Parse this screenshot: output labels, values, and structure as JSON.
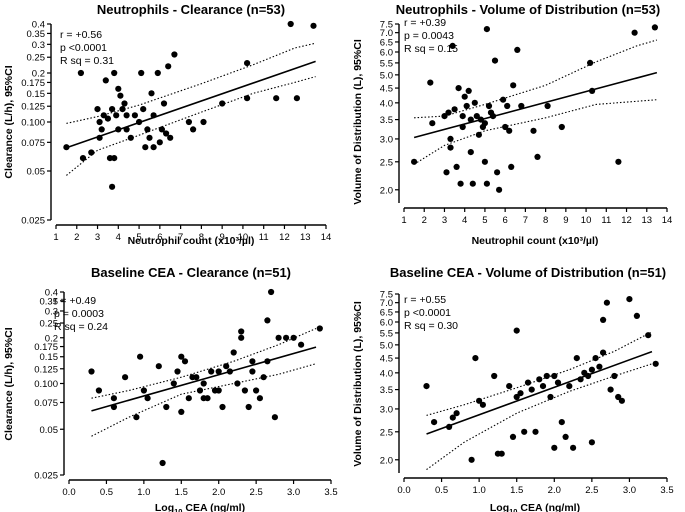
{
  "chart_data": [
    {
      "type": "scatter",
      "title": "Neutrophils - Clearance (n=53)",
      "xlabel": "Neutrophil count (x10³/µl)",
      "ylabel": "Clearance (L/h), 95%CI",
      "xlim": [
        1,
        14
      ],
      "ylim": [
        0.025,
        0.4
      ],
      "xticks": [
        1,
        2,
        3,
        4,
        5,
        6,
        7,
        8,
        9,
        10,
        11,
        12,
        13,
        14
      ],
      "xtick_labels": [
        "1",
        "2",
        "3",
        "4",
        "5",
        "6",
        "7",
        "8",
        "9",
        "10",
        "11",
        "12",
        "13",
        "14"
      ],
      "yticks": [
        0.025,
        0.05,
        0.075,
        0.1,
        0.125,
        0.15,
        0.175,
        0.2,
        0.25,
        0.3,
        0.35,
        0.4
      ],
      "ytick_labels": [
        "0.025",
        "0.05",
        "0.075",
        "0.100",
        "0.125",
        "0.15",
        "0.175",
        "0.2",
        "0.25",
        "0.3",
        "0.35",
        "0.4"
      ],
      "stats": [
        "r = +0.56",
        "p <0.0001",
        "R sq = 0.31"
      ],
      "yscale": "log",
      "fit": {
        "y_at_xmin": 0.066,
        "y_at_xmax": 0.248
      },
      "ci_upper": [
        [
          1.5,
          0.098
        ],
        [
          3,
          0.108
        ],
        [
          5,
          0.127
        ],
        [
          8,
          0.172
        ],
        [
          10.5,
          0.225
        ],
        [
          12.5,
          0.285
        ],
        [
          13.5,
          0.305
        ]
      ],
      "ci_lower": [
        [
          1.5,
          0.047
        ],
        [
          3,
          0.067
        ],
        [
          5,
          0.083
        ],
        [
          8,
          0.115
        ],
        [
          10.5,
          0.15
        ],
        [
          12.5,
          0.175
        ],
        [
          13.5,
          0.19
        ]
      ],
      "points": [
        [
          1.5,
          0.07
        ],
        [
          2.2,
          0.2
        ],
        [
          2.3,
          0.06
        ],
        [
          2.7,
          0.065
        ],
        [
          3.0,
          0.12
        ],
        [
          3.1,
          0.08
        ],
        [
          3.1,
          0.1
        ],
        [
          3.2,
          0.09
        ],
        [
          3.3,
          0.11
        ],
        [
          3.4,
          0.18
        ],
        [
          3.5,
          0.105
        ],
        [
          3.6,
          0.06
        ],
        [
          3.7,
          0.04
        ],
        [
          3.7,
          0.12
        ],
        [
          3.8,
          0.2
        ],
        [
          3.8,
          0.06
        ],
        [
          3.9,
          0.11
        ],
        [
          4.0,
          0.16
        ],
        [
          4.0,
          0.09
        ],
        [
          4.1,
          0.145
        ],
        [
          4.2,
          0.12
        ],
        [
          4.3,
          0.13
        ],
        [
          4.4,
          0.11
        ],
        [
          4.4,
          0.09
        ],
        [
          4.6,
          0.08
        ],
        [
          4.8,
          0.11
        ],
        [
          5.0,
          0.1
        ],
        [
          5.1,
          0.2
        ],
        [
          5.2,
          0.12
        ],
        [
          5.3,
          0.07
        ],
        [
          5.4,
          0.09
        ],
        [
          5.5,
          0.08
        ],
        [
          5.6,
          0.15
        ],
        [
          5.7,
          0.11
        ],
        [
          5.7,
          0.07
        ],
        [
          5.9,
          0.2
        ],
        [
          6.0,
          0.075
        ],
        [
          6.1,
          0.09
        ],
        [
          6.2,
          0.13
        ],
        [
          6.3,
          0.085
        ],
        [
          6.4,
          0.22
        ],
        [
          6.5,
          0.08
        ],
        [
          6.7,
          0.26
        ],
        [
          7.4,
          0.1
        ],
        [
          7.6,
          0.09
        ],
        [
          8.1,
          0.1
        ],
        [
          9.0,
          0.13
        ],
        [
          10.2,
          0.23
        ],
        [
          10.2,
          0.14
        ],
        [
          11.6,
          0.14
        ],
        [
          12.3,
          0.4
        ],
        [
          12.6,
          0.14
        ],
        [
          13.4,
          0.39
        ]
      ]
    },
    {
      "type": "scatter",
      "title": "Neutrophils - Volume of Distribution (n=53)",
      "xlabel": "Neutrophil count (x10³/µl)",
      "ylabel": "Volume of Distribution (L), 95%CI",
      "xlim": [
        1,
        14
      ],
      "ylim": [
        1.8,
        7.5
      ],
      "xticks": [
        1,
        2,
        3,
        4,
        5,
        6,
        7,
        8,
        9,
        10,
        11,
        12,
        13,
        14
      ],
      "xtick_labels": [
        "1",
        "2",
        "3",
        "4",
        "5",
        "6",
        "7",
        "8",
        "9",
        "10",
        "11",
        "12",
        "13",
        "14"
      ],
      "yticks": [
        2.0,
        2.5,
        3.0,
        3.5,
        4.0,
        4.5,
        5.0,
        5.5,
        6.0,
        6.5,
        7.0,
        7.5
      ],
      "ytick_labels": [
        "2.0",
        "2.5",
        "3.0",
        "3.5",
        "4.0",
        "4.5",
        "5.0",
        "5.5",
        "6.0",
        "6.5",
        "7.0",
        "7.5"
      ],
      "stats": [
        "r = +0.39",
        "p = 0.0043",
        "R sq = 0.15"
      ],
      "yscale": "log",
      "fit": {
        "y_at_xmin": 2.97,
        "y_at_xmax": 5.2
      },
      "ci_upper": [
        [
          1.5,
          3.55
        ],
        [
          3,
          3.6
        ],
        [
          5,
          3.95
        ],
        [
          8,
          4.6
        ],
        [
          10.5,
          5.55
        ],
        [
          12.5,
          6.3
        ],
        [
          13.5,
          6.6
        ]
      ],
      "ci_lower": [
        [
          1.5,
          2.45
        ],
        [
          3,
          2.85
        ],
        [
          5,
          3.2
        ],
        [
          8,
          3.55
        ],
        [
          10.5,
          3.95
        ],
        [
          12.5,
          4.05
        ],
        [
          13.5,
          4.1
        ]
      ],
      "points": [
        [
          1.5,
          2.5
        ],
        [
          2.3,
          4.7
        ],
        [
          2.4,
          3.4
        ],
        [
          3.0,
          3.6
        ],
        [
          3.1,
          2.3
        ],
        [
          3.2,
          3.7
        ],
        [
          3.3,
          2.8
        ],
        [
          3.3,
          3.0
        ],
        [
          3.4,
          6.3
        ],
        [
          3.5,
          3.8
        ],
        [
          3.6,
          2.4
        ],
        [
          3.7,
          4.5
        ],
        [
          3.8,
          2.1
        ],
        [
          3.9,
          3.6
        ],
        [
          3.9,
          3.3
        ],
        [
          4.0,
          4.2
        ],
        [
          4.1,
          3.9
        ],
        [
          4.2,
          4.4
        ],
        [
          4.3,
          3.5
        ],
        [
          4.3,
          2.7
        ],
        [
          4.4,
          2.1
        ],
        [
          4.5,
          4.0
        ],
        [
          4.6,
          3.6
        ],
        [
          4.7,
          3.1
        ],
        [
          4.8,
          3.5
        ],
        [
          4.9,
          3.3
        ],
        [
          5.0,
          3.4
        ],
        [
          5.0,
          2.5
        ],
        [
          5.1,
          7.2
        ],
        [
          5.1,
          2.1
        ],
        [
          5.2,
          3.9
        ],
        [
          5.3,
          3.7
        ],
        [
          5.4,
          3.6
        ],
        [
          5.5,
          5.6
        ],
        [
          5.6,
          2.3
        ],
        [
          5.7,
          2.0
        ],
        [
          5.9,
          4.1
        ],
        [
          6.0,
          3.3
        ],
        [
          6.1,
          3.9
        ],
        [
          6.2,
          3.2
        ],
        [
          6.3,
          2.4
        ],
        [
          6.4,
          4.6
        ],
        [
          6.6,
          6.1
        ],
        [
          6.8,
          3.9
        ],
        [
          7.4,
          3.2
        ],
        [
          7.6,
          2.6
        ],
        [
          8.1,
          3.9
        ],
        [
          8.8,
          3.3
        ],
        [
          10.2,
          5.5
        ],
        [
          10.3,
          4.4
        ],
        [
          11.6,
          2.5
        ],
        [
          12.4,
          7.0
        ],
        [
          13.4,
          7.3
        ]
      ]
    },
    {
      "type": "scatter",
      "title": "Baseline CEA - Clearance (n=51)",
      "xlabel": "Log₁₀ CEA (ng/ml)",
      "ylabel": "Clearance (L/h), 95%CI",
      "xlim": [
        0.0,
        3.5
      ],
      "ylim": [
        0.025,
        0.4
      ],
      "xticks": [
        0.0,
        0.5,
        1.0,
        1.5,
        2.0,
        2.5,
        3.0,
        3.5
      ],
      "xtick_labels": [
        "0.0",
        "0.5",
        "1.0",
        "1.5",
        "2.0",
        "2.5",
        "3.0",
        "3.5"
      ],
      "yticks": [
        0.025,
        0.05,
        0.075,
        0.1,
        0.125,
        0.15,
        0.175,
        0.2,
        0.25,
        0.3,
        0.35,
        0.4
      ],
      "ytick_labels": [
        "0.025",
        "0.05",
        "0.075",
        "0.100",
        "0.125",
        "0.15",
        "0.175",
        "0.2",
        "0.25",
        "0.3",
        "0.35",
        "0.4"
      ],
      "stats": [
        "r = +0.49",
        "p = 0.0003",
        "R sq = 0.24"
      ],
      "yscale": "log",
      "fit": {
        "y_at_xmin": 0.06,
        "y_at_xmax": 0.185
      },
      "ci_upper": [
        [
          0.3,
          0.08
        ],
        [
          0.8,
          0.09
        ],
        [
          1.5,
          0.11
        ],
        [
          2.2,
          0.14
        ],
        [
          2.8,
          0.18
        ],
        [
          3.3,
          0.23
        ]
      ],
      "ci_lower": [
        [
          0.3,
          0.045
        ],
        [
          0.8,
          0.06
        ],
        [
          1.5,
          0.085
        ],
        [
          2.2,
          0.1
        ],
        [
          2.8,
          0.115
        ],
        [
          3.3,
          0.135
        ]
      ],
      "points": [
        [
          0.3,
          0.12
        ],
        [
          0.4,
          0.09
        ],
        [
          0.6,
          0.08
        ],
        [
          0.6,
          0.07
        ],
        [
          0.75,
          0.11
        ],
        [
          0.9,
          0.06
        ],
        [
          0.95,
          0.15
        ],
        [
          1.0,
          0.09
        ],
        [
          1.05,
          0.08
        ],
        [
          1.2,
          0.13
        ],
        [
          1.25,
          0.03
        ],
        [
          1.3,
          0.07
        ],
        [
          1.4,
          0.1
        ],
        [
          1.45,
          0.12
        ],
        [
          1.5,
          0.15
        ],
        [
          1.5,
          0.065
        ],
        [
          1.55,
          0.14
        ],
        [
          1.6,
          0.08
        ],
        [
          1.65,
          0.11
        ],
        [
          1.7,
          0.11
        ],
        [
          1.75,
          0.09
        ],
        [
          1.8,
          0.1
        ],
        [
          1.8,
          0.08
        ],
        [
          1.85,
          0.08
        ],
        [
          1.9,
          0.12
        ],
        [
          1.95,
          0.09
        ],
        [
          2.0,
          0.12
        ],
        [
          2.0,
          0.09
        ],
        [
          2.05,
          0.07
        ],
        [
          2.1,
          0.13
        ],
        [
          2.15,
          0.12
        ],
        [
          2.2,
          0.16
        ],
        [
          2.25,
          0.1
        ],
        [
          2.3,
          0.22
        ],
        [
          2.3,
          0.2
        ],
        [
          2.35,
          0.09
        ],
        [
          2.4,
          0.07
        ],
        [
          2.45,
          0.14
        ],
        [
          2.45,
          0.12
        ],
        [
          2.5,
          0.09
        ],
        [
          2.55,
          0.08
        ],
        [
          2.6,
          0.11
        ],
        [
          2.65,
          0.14
        ],
        [
          2.65,
          0.26
        ],
        [
          2.7,
          0.4
        ],
        [
          2.75,
          0.06
        ],
        [
          2.8,
          0.2
        ],
        [
          2.9,
          0.2
        ],
        [
          3.0,
          0.2
        ],
        [
          3.1,
          0.18
        ],
        [
          3.35,
          0.23
        ]
      ]
    },
    {
      "type": "scatter",
      "title": "Baseline CEA - Volume of Distribution (n=51)",
      "xlabel": "Log₁₀ CEA (ng/ml)",
      "ylabel": "Volume of Distribution (L), 95%CI",
      "xlim": [
        0.0,
        3.5
      ],
      "ylim": [
        1.8,
        7.5
      ],
      "xticks": [
        0.0,
        0.5,
        1.0,
        1.5,
        2.0,
        2.5,
        3.0,
        3.5
      ],
      "xtick_labels": [
        "0.0",
        "0.5",
        "1.0",
        "1.5",
        "2.0",
        "2.5",
        "3.0",
        "3.5"
      ],
      "yticks": [
        2.0,
        2.5,
        3.0,
        3.5,
        4.0,
        4.5,
        5.0,
        5.5,
        6.0,
        6.5,
        7.0,
        7.5
      ],
      "ytick_labels": [
        "2.0",
        "2.5",
        "3.0",
        "3.5",
        "4.0",
        "4.5",
        "5.0",
        "5.5",
        "6.0",
        "6.5",
        "7.0",
        "7.5"
      ],
      "stats": [
        "r = +0.55",
        "p <0.0001",
        "R sq = 0.30"
      ],
      "yscale": "log",
      "fit": {
        "y_at_xmin": 2.3,
        "y_at_xmax": 4.95
      },
      "ci_upper": [
        [
          0.3,
          2.85
        ],
        [
          0.8,
          3.1
        ],
        [
          1.5,
          3.55
        ],
        [
          2.2,
          4.1
        ],
        [
          2.8,
          4.75
        ],
        [
          3.3,
          5.55
        ]
      ],
      "ci_lower": [
        [
          0.3,
          1.85
        ],
        [
          0.8,
          2.3
        ],
        [
          1.5,
          2.9
        ],
        [
          2.2,
          3.45
        ],
        [
          2.8,
          3.9
        ],
        [
          3.3,
          4.3
        ]
      ],
      "points": [
        [
          0.3,
          3.6
        ],
        [
          0.4,
          2.7
        ],
        [
          0.6,
          2.6
        ],
        [
          0.65,
          2.8
        ],
        [
          0.7,
          2.9
        ],
        [
          0.9,
          2.0
        ],
        [
          0.95,
          4.5
        ],
        [
          1.0,
          3.2
        ],
        [
          1.05,
          3.1
        ],
        [
          1.2,
          3.9
        ],
        [
          1.25,
          2.1
        ],
        [
          1.3,
          2.1
        ],
        [
          1.4,
          3.6
        ],
        [
          1.45,
          2.4
        ],
        [
          1.5,
          5.6
        ],
        [
          1.5,
          3.3
        ],
        [
          1.55,
          3.4
        ],
        [
          1.6,
          2.5
        ],
        [
          1.65,
          3.7
        ],
        [
          1.7,
          3.5
        ],
        [
          1.75,
          2.5
        ],
        [
          1.8,
          3.8
        ],
        [
          1.85,
          3.6
        ],
        [
          1.9,
          3.9
        ],
        [
          1.95,
          3.3
        ],
        [
          2.0,
          2.2
        ],
        [
          2.0,
          3.9
        ],
        [
          2.05,
          3.7
        ],
        [
          2.1,
          2.7
        ],
        [
          2.15,
          2.4
        ],
        [
          2.2,
          3.6
        ],
        [
          2.25,
          2.2
        ],
        [
          2.3,
          4.5
        ],
        [
          2.35,
          3.8
        ],
        [
          2.4,
          4.0
        ],
        [
          2.45,
          3.9
        ],
        [
          2.5,
          4.1
        ],
        [
          2.5,
          2.3
        ],
        [
          2.55,
          4.5
        ],
        [
          2.6,
          4.2
        ],
        [
          2.65,
          4.7
        ],
        [
          2.65,
          6.1
        ],
        [
          2.7,
          7.0
        ],
        [
          2.75,
          3.5
        ],
        [
          2.8,
          3.9
        ],
        [
          2.85,
          3.3
        ],
        [
          2.9,
          3.2
        ],
        [
          3.0,
          7.2
        ],
        [
          3.1,
          6.3
        ],
        [
          3.25,
          5.4
        ],
        [
          3.35,
          4.3
        ]
      ]
    }
  ]
}
